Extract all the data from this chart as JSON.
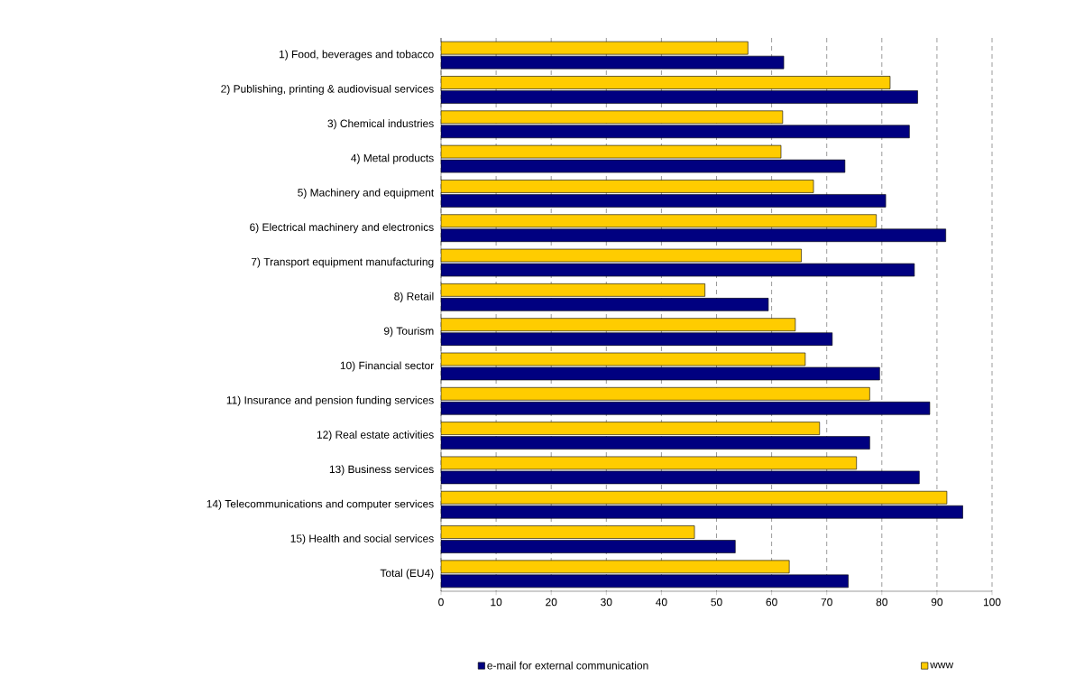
{
  "chart_data": {
    "type": "bar",
    "orientation": "horizontal",
    "categories": [
      "1) Food, beverages and tobacco",
      "2) Publishing, printing & audiovisual services",
      "3) Chemical industries",
      "4) Metal products",
      "5) Machinery and equipment",
      "6) Electrical machinery and electronics",
      "7) Transport equipment manufacturing",
      "8) Retail",
      "9) Tourism",
      "10) Financial sector",
      "11) Insurance and pension funding services",
      "12) Real estate activities",
      "13) Business services",
      "14) Telecommunications and computer services",
      "15) Health and social services",
      "Total (EU4)"
    ],
    "series": [
      {
        "name": "e-mail for external communication",
        "color": "#000080",
        "values": [
          62.2,
          86.5,
          85.0,
          73.3,
          80.7,
          91.6,
          85.9,
          59.4,
          71.0,
          79.6,
          88.7,
          77.8,
          86.8,
          94.7,
          53.4,
          73.9
        ]
      },
      {
        "name": "www",
        "color": "#ffcc00",
        "values": [
          55.7,
          81.5,
          62.0,
          61.7,
          67.6,
          79.0,
          65.4,
          47.9,
          64.3,
          66.1,
          77.8,
          68.7,
          75.4,
          91.8,
          46.0,
          63.2
        ]
      }
    ],
    "xlim": [
      0,
      100
    ],
    "xticks": [
      0,
      10,
      20,
      30,
      40,
      50,
      60,
      70,
      80,
      90,
      100
    ],
    "grid": "x",
    "legend": "bottom"
  }
}
